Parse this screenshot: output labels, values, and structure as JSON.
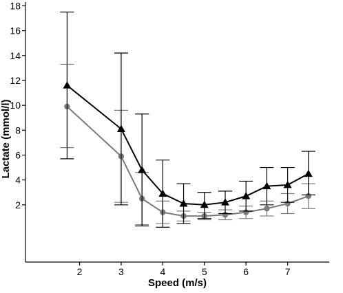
{
  "chart_data": {
    "type": "line",
    "xlabel": "Speed (m/s)",
    "ylabel": "Lactate (mmol/l)",
    "xlim": [
      0.7,
      8.0
    ],
    "ylim": [
      -2.6,
      18.3
    ],
    "x_ticks": [
      2,
      3,
      4,
      5,
      6,
      7
    ],
    "y_ticks": [
      2,
      4,
      6,
      8,
      10,
      12,
      14,
      16,
      18
    ],
    "grid": false,
    "legend": "none",
    "series": [
      {
        "marker": "triangle",
        "color": "#000000",
        "points": [
          {
            "x": 1.7,
            "y": 11.6,
            "err_low": 5.7,
            "err_high": 17.5
          },
          {
            "x": 3.0,
            "y": 8.1,
            "err_low": 2.0,
            "err_high": 14.2
          },
          {
            "x": 3.5,
            "y": 4.8,
            "err_low": 0.3,
            "err_high": 9.3
          },
          {
            "x": 4.0,
            "y": 2.9,
            "err_low": 0.2,
            "err_high": 5.6
          },
          {
            "x": 4.5,
            "y": 2.1,
            "err_low": 0.5,
            "err_high": 3.7
          },
          {
            "x": 5.0,
            "y": 2.0,
            "err_low": 0.9,
            "err_high": 3.0
          },
          {
            "x": 5.5,
            "y": 2.2,
            "err_low": 1.3,
            "err_high": 3.1
          },
          {
            "x": 6.0,
            "y": 2.7,
            "err_low": 1.5,
            "err_high": 3.9
          },
          {
            "x": 6.5,
            "y": 3.5,
            "err_low": 2.0,
            "err_high": 5.0
          },
          {
            "x": 7.0,
            "y": 3.6,
            "err_low": 2.2,
            "err_high": 5.0
          },
          {
            "x": 7.5,
            "y": 4.5,
            "err_low": 2.8,
            "err_high": 6.3
          }
        ]
      },
      {
        "marker": "circle",
        "color": "#7a7a7a",
        "points": [
          {
            "x": 1.7,
            "y": 9.9,
            "err_low": 6.6,
            "err_high": 13.3
          },
          {
            "x": 3.0,
            "y": 5.9,
            "err_low": 2.2,
            "err_high": 9.6
          },
          {
            "x": 3.5,
            "y": 2.5,
            "err_low": 0.4,
            "err_high": 4.6
          },
          {
            "x": 4.0,
            "y": 1.4,
            "err_low": 0.5,
            "err_high": 2.3
          },
          {
            "x": 4.5,
            "y": 1.1,
            "err_low": 0.7,
            "err_high": 1.5
          },
          {
            "x": 5.0,
            "y": 1.1,
            "err_low": 0.8,
            "err_high": 1.4
          },
          {
            "x": 5.5,
            "y": 1.2,
            "err_low": 0.8,
            "err_high": 1.6
          },
          {
            "x": 6.0,
            "y": 1.4,
            "err_low": 0.9,
            "err_high": 1.9
          },
          {
            "x": 6.5,
            "y": 1.7,
            "err_low": 1.1,
            "err_high": 2.3
          },
          {
            "x": 7.0,
            "y": 2.1,
            "err_low": 1.3,
            "err_high": 2.9
          },
          {
            "x": 7.5,
            "y": 2.7,
            "err_low": 1.7,
            "err_high": 3.7
          }
        ]
      }
    ]
  }
}
